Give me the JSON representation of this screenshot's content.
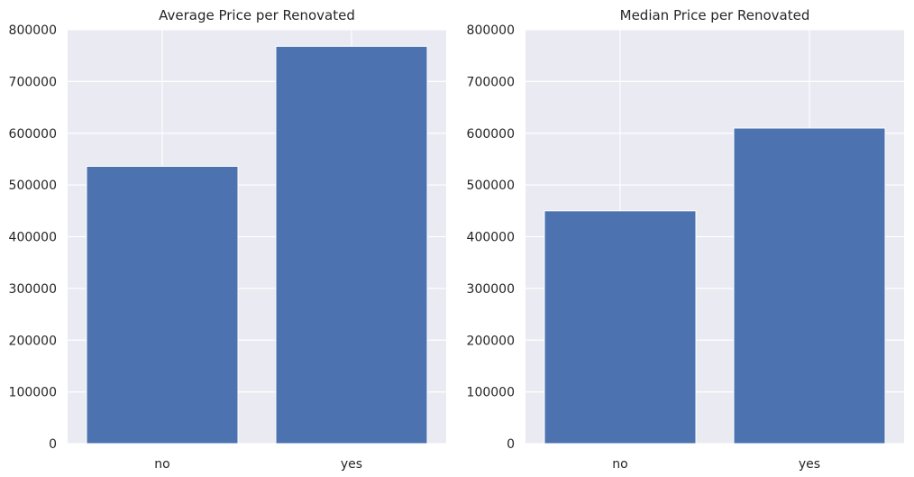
{
  "chart_data": [
    {
      "type": "bar",
      "title": "Average Price per Renovated",
      "xlabel": "",
      "ylabel": "",
      "categories": [
        "no",
        "yes"
      ],
      "values": [
        536000,
        768000
      ],
      "ylim": [
        0,
        800000
      ],
      "yticks": [
        0,
        100000,
        200000,
        300000,
        400000,
        500000,
        600000,
        700000,
        800000
      ],
      "ytick_labels": [
        "0",
        "100000",
        "200000",
        "300000",
        "400000",
        "500000",
        "600000",
        "700000",
        "800000"
      ],
      "grid": true,
      "colors": {
        "bar": "#4c72b0",
        "background": "#eaeaf2",
        "grid": "#ffffff",
        "text": "#262626"
      }
    },
    {
      "type": "bar",
      "title": "Median Price per Renovated",
      "xlabel": "",
      "ylabel": "",
      "categories": [
        "no",
        "yes"
      ],
      "values": [
        450000,
        610000
      ],
      "ylim": [
        0,
        800000
      ],
      "yticks": [
        0,
        100000,
        200000,
        300000,
        400000,
        500000,
        600000,
        700000,
        800000
      ],
      "ytick_labels": [
        "0",
        "100000",
        "200000",
        "300000",
        "400000",
        "500000",
        "600000",
        "700000",
        "800000"
      ],
      "grid": true,
      "colors": {
        "bar": "#4c72b0",
        "background": "#eaeaf2",
        "grid": "#ffffff",
        "text": "#262626"
      }
    }
  ]
}
